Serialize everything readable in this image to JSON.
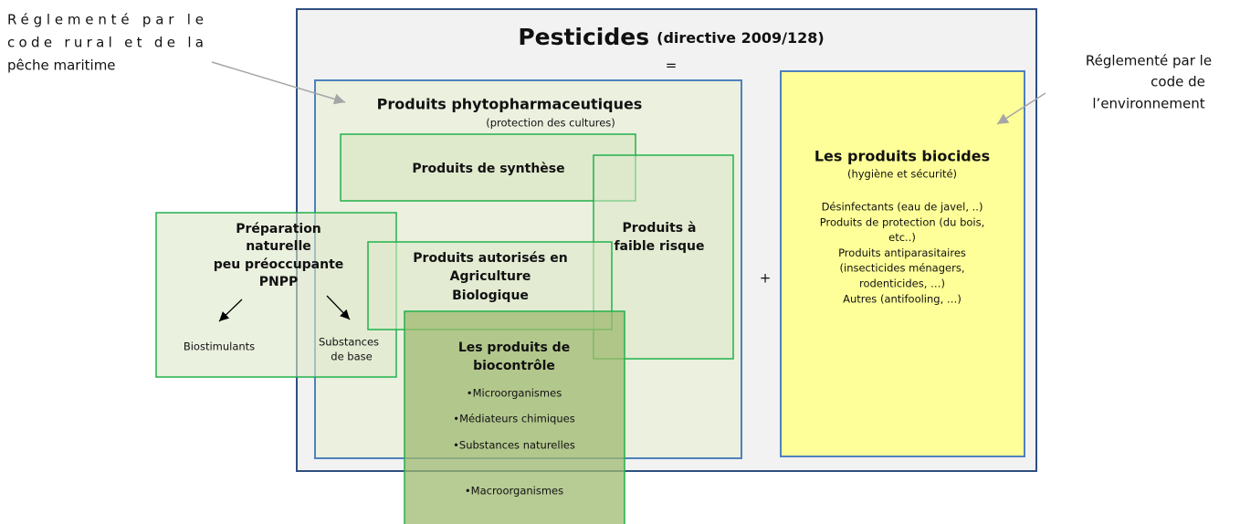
{
  "title": {
    "main": "Pesticides",
    "sub": "(directive 2009/128)"
  },
  "equals": "=",
  "plus": "+",
  "left_note": [
    "Réglementé par le",
    "code rural et de la",
    "pêche maritime"
  ],
  "right_note": [
    "Réglementé par le",
    "code de",
    "l’environnement"
  ],
  "phyto": {
    "title": "Produits phytopharmaceutiques",
    "subtitle": "(protection des cultures)"
  },
  "synthese": "Produits de synthèse",
  "faible_risque": [
    "Produits à",
    "faible risque"
  ],
  "pnpp": {
    "title": [
      "Préparation",
      "naturelle",
      "peu préoccupante",
      "PNPP"
    ],
    "left": "Biostimulants",
    "right": [
      "Substances",
      "de base"
    ]
  },
  "bio": [
    "Produits autorisés en",
    "Agriculture",
    "Biologique"
  ],
  "biocontrole": {
    "title": [
      "Les produits de",
      "biocontrôle"
    ],
    "items": [
      "•Microorganismes",
      "•Médiateurs chimiques",
      "•Substances naturelles",
      "•Macroorganismes"
    ]
  },
  "biocides": {
    "title": "Les produits biocides",
    "subtitle": "(hygiène et sécurité)",
    "lines": [
      "Désinfectants (eau de javel, ..)",
      "Produits de protection (du bois,",
      "etc..)",
      "Produits antiparasitaires",
      "(insecticides ménagers,",
      "rodenticides, …)",
      "Autres (antifooling, …)"
    ]
  }
}
